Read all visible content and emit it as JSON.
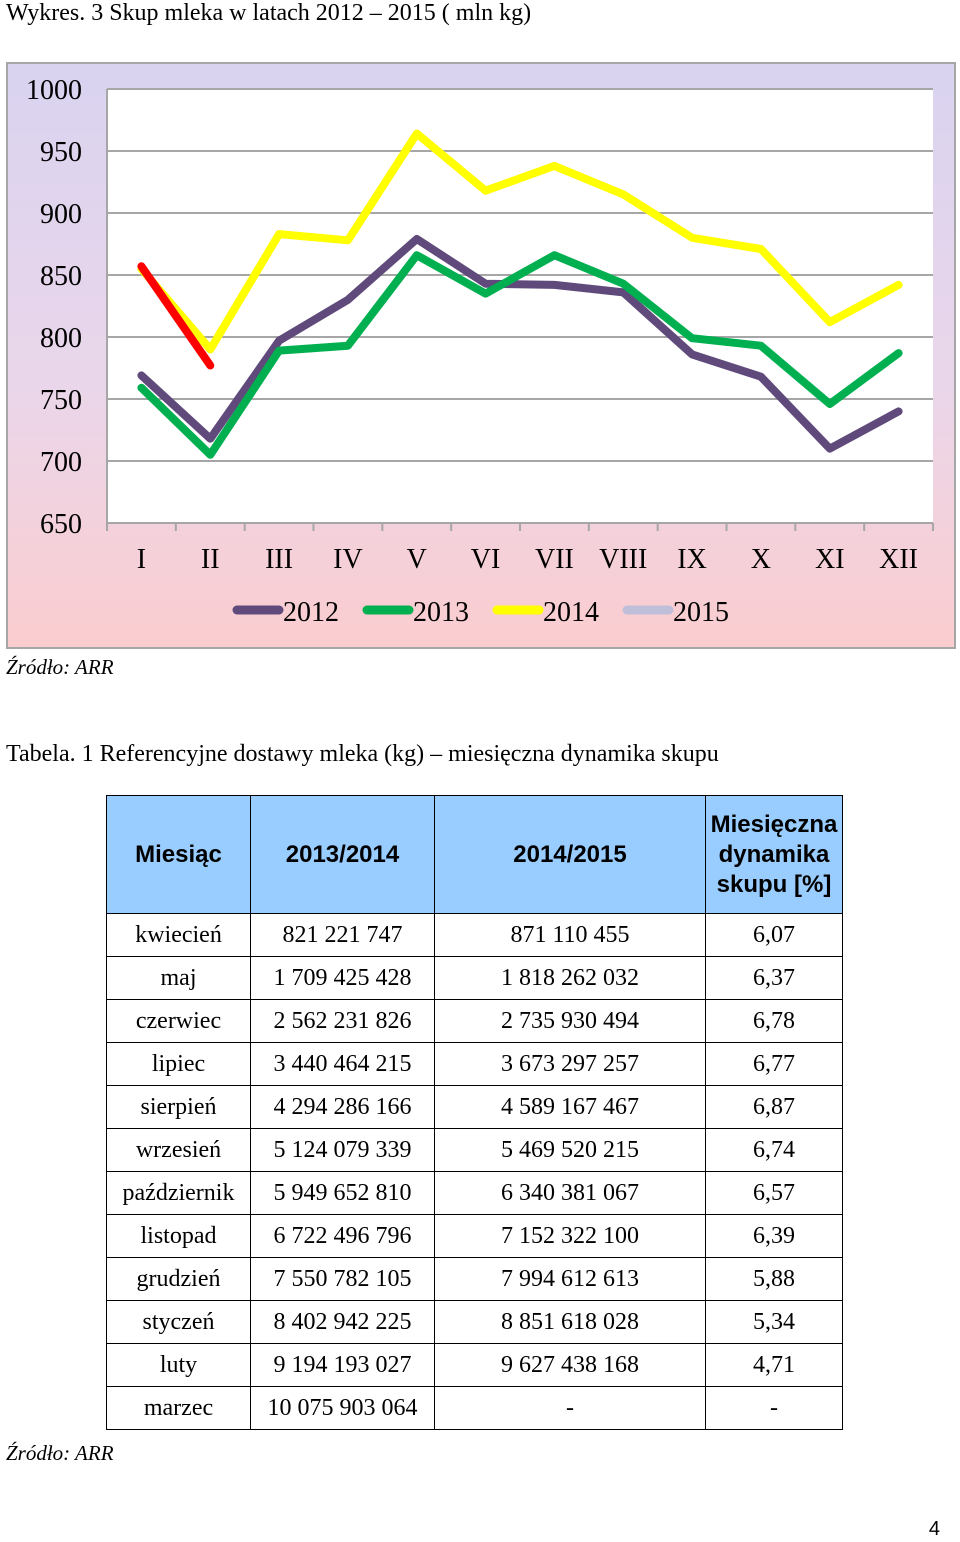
{
  "chart_caption": "Wykres. 3 Skup mleka w latach 2012 – 2015 ( mln kg)",
  "chart_source": "Źródło: ARR",
  "table_caption": "Tabela. 1 Referencyjne dostawy mleka (kg) – miesięczna dynamika skupu",
  "table_source": "Źródło: ARR",
  "page_number": "4",
  "chart_data": {
    "type": "line",
    "title": "Wykres. 3 Skup mleka w latach 2012 – 2015 ( mln kg)",
    "categories": [
      "I",
      "II",
      "III",
      "IV",
      "V",
      "VI",
      "VII",
      "VIII",
      "IX",
      "X",
      "XI",
      "XII"
    ],
    "ylim": [
      650,
      1000
    ],
    "yticks": [
      650,
      700,
      750,
      800,
      850,
      900,
      950,
      1000
    ],
    "grid": true,
    "legend_position": "bottom",
    "series": [
      {
        "name": "2012",
        "color": "#604a7b",
        "values": [
          769,
          718,
          797,
          830,
          879,
          843,
          842,
          836,
          786,
          768,
          710,
          740
        ]
      },
      {
        "name": "2013",
        "color": "#00b050",
        "values": [
          759,
          705,
          789,
          793,
          866,
          835,
          866,
          843,
          799,
          793,
          746,
          787
        ]
      },
      {
        "name": "2014",
        "color": "#ffff00",
        "values": [
          855,
          790,
          883,
          878,
          964,
          918,
          938,
          915,
          880,
          871,
          812,
          842
        ]
      },
      {
        "name": "2015",
        "color": "#ff0000",
        "legend_color": "#bfbfd9",
        "values": [
          857,
          777,
          null,
          null,
          null,
          null,
          null,
          null,
          null,
          null,
          null,
          null
        ]
      }
    ]
  },
  "table": {
    "headers": [
      "Miesiąc",
      "2013/2014",
      "2014/2015",
      "Miesięczna dynamika skupu [%]"
    ],
    "rows": [
      [
        "kwiecień",
        "821 221 747",
        "871 110 455",
        "6,07"
      ],
      [
        "maj",
        "1 709 425 428",
        "1 818 262 032",
        "6,37"
      ],
      [
        "czerwiec",
        "2 562 231 826",
        "2 735 930 494",
        "6,78"
      ],
      [
        "lipiec",
        "3 440 464 215",
        "3 673 297 257",
        "6,77"
      ],
      [
        "sierpień",
        "4 294 286 166",
        "4 589 167 467",
        "6,87"
      ],
      [
        "wrzesień",
        "5 124 079 339",
        "5 469 520 215",
        "6,74"
      ],
      [
        "październik",
        "5 949 652 810",
        "6 340 381 067",
        "6,57"
      ],
      [
        "listopad",
        "6 722 496 796",
        "7 152 322 100",
        "6,39"
      ],
      [
        "grudzień",
        "7 550 782 105",
        "7 994 612 613",
        "5,88"
      ],
      [
        "styczeń",
        "8 402 942 225",
        "8 851 618 028",
        "5,34"
      ],
      [
        "luty",
        "9 194 193 027",
        "9 627 438 168",
        "4,71"
      ],
      [
        "marzec",
        "10 075 903 064",
        "-",
        "-"
      ]
    ]
  }
}
